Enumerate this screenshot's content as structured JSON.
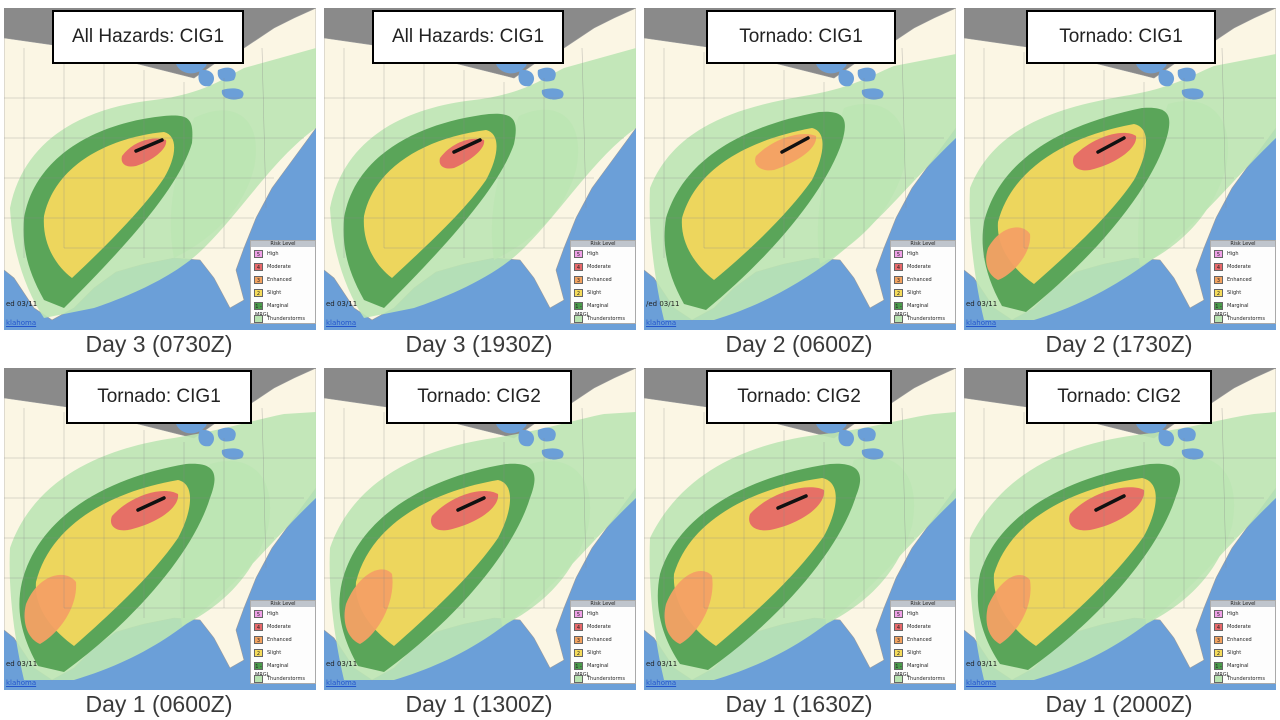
{
  "panels": [
    {
      "title": "All Hazards: CIG1",
      "caption": "Day 3 (0730Z)",
      "date_fragment": "ed 03/11",
      "link_fragment": "klahoma",
      "variant": "d3a"
    },
    {
      "title": "All Hazards: CIG1",
      "caption": "Day 3 (1930Z)",
      "date_fragment": "ed 03/11",
      "link_fragment": "klahoma",
      "variant": "d3b"
    },
    {
      "title": "Tornado: CIG1",
      "caption": "Day 2 (0600Z)",
      "date_fragment": "/ed 03/11",
      "link_fragment": "klahoma",
      "variant": "d2a"
    },
    {
      "title": "Tornado: CIG1",
      "caption": "Day 2 (1730Z)",
      "date_fragment": "ed 03/11",
      "link_fragment": "klahoma",
      "variant": "d2b"
    },
    {
      "title": "Tornado: CIG1",
      "caption": "Day 1 (0600Z)",
      "date_fragment": "ed 03/11",
      "link_fragment": "klahoma",
      "variant": "d1a"
    },
    {
      "title": "Tornado: CIG2",
      "caption": "Day 1 (1300Z)",
      "date_fragment": "ed 03/11",
      "link_fragment": "klahoma",
      "variant": "d1b"
    },
    {
      "title": "Tornado: CIG2",
      "caption": "Day 1 (1630Z)",
      "date_fragment": "ed 03/11",
      "link_fragment": "klahoma",
      "variant": "d1c"
    },
    {
      "title": "Tornado: CIG2",
      "caption": "Day 1 (2000Z)",
      "date_fragment": "ed 03/11",
      "link_fragment": "klahoma",
      "variant": "d1d"
    }
  ],
  "legend": {
    "header": "Risk Level",
    "items": [
      {
        "num": "5",
        "label": "High",
        "color": "#f0a0e8"
      },
      {
        "num": "4",
        "label": "Moderate",
        "color": "#e8686a"
      },
      {
        "num": "3",
        "label": "Enhanced",
        "color": "#f4a461"
      },
      {
        "num": "2",
        "label": "Slight",
        "color": "#f6dc5c"
      },
      {
        "num": "1 - MRGL",
        "label": "Marginal",
        "color": "#4a9a4a"
      },
      {
        "num": "",
        "label": "Thunderstorms",
        "color": "#b8e4b0"
      }
    ]
  },
  "colors": {
    "water": "#6b9fd8",
    "land": "#fbf6e4",
    "canada": "#8a8a8a",
    "thunderstorms": "#bde6b4",
    "marginal": "#4f9d4f",
    "slight": "#f6d85e",
    "enhanced": "#f4a064",
    "moderate": "#e66a66",
    "line": "#111111"
  }
}
